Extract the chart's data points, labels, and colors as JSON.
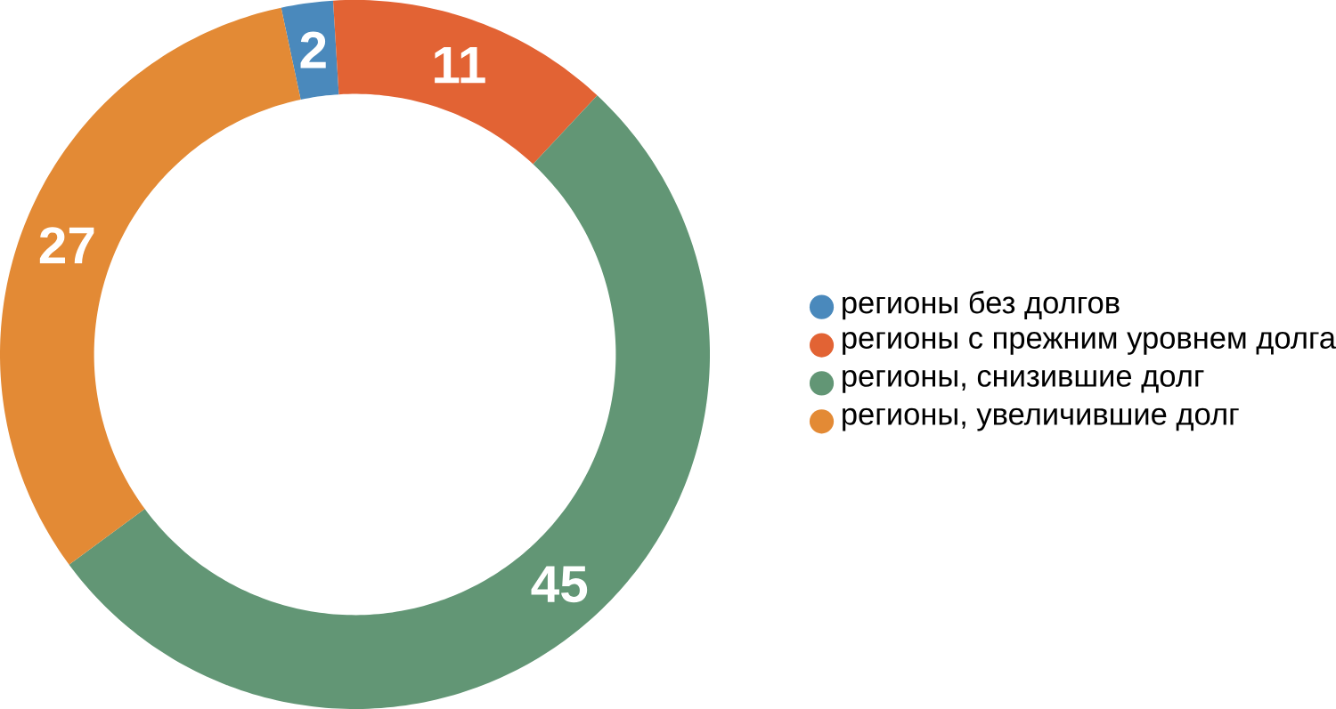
{
  "chart_data": {
    "type": "donut",
    "categories": [
      "регионы без долгов",
      "регионы с прежним уровнем долга",
      "регионы, снизившие долг",
      "регионы, увеличившие долг"
    ],
    "values": [
      2,
      11,
      45,
      27
    ],
    "colors": [
      "#4a89bc",
      "#e26334",
      "#629675",
      "#e38a35"
    ],
    "data_labels": true,
    "legend": "right"
  }
}
